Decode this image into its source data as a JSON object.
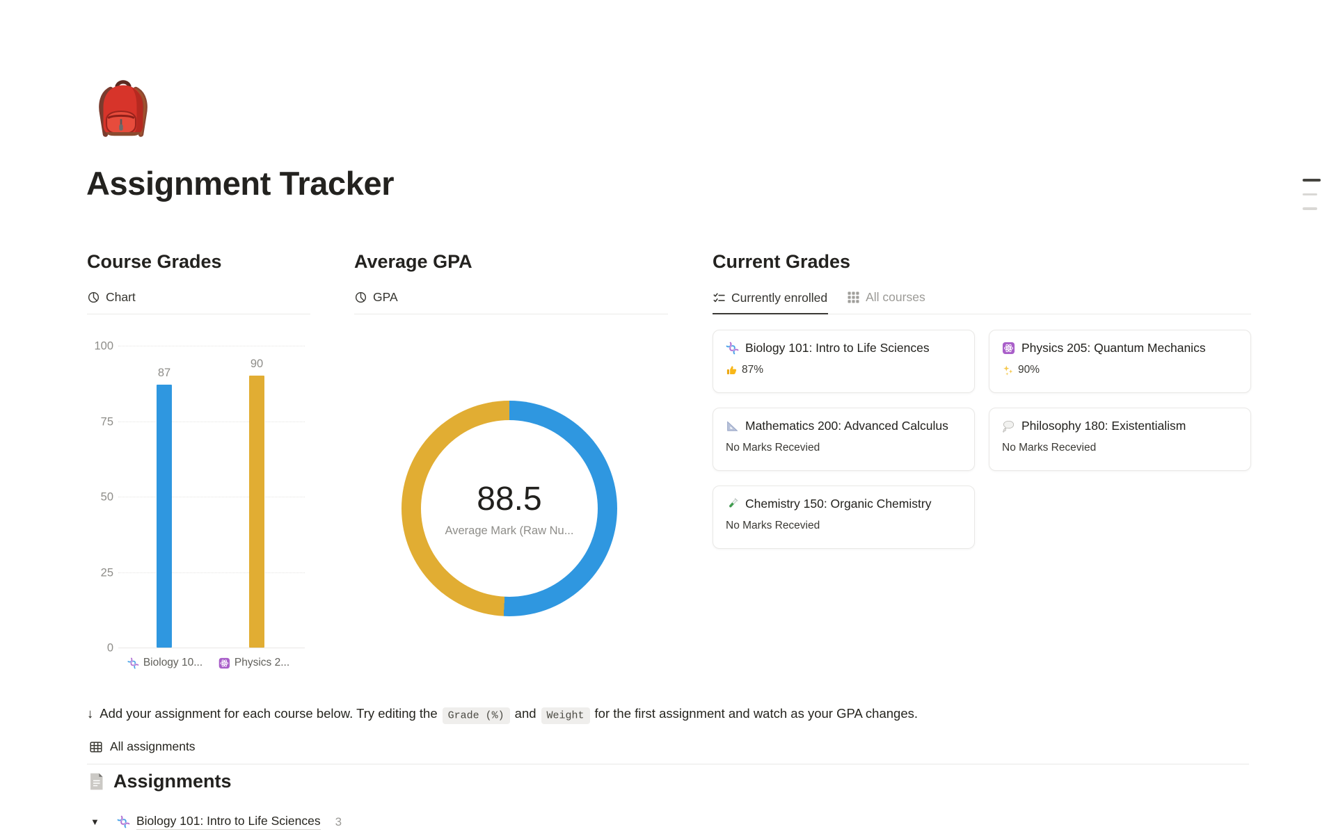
{
  "page": {
    "title": "Assignment Tracker",
    "icon": "backpack-emoji"
  },
  "sections": {
    "course_grades": {
      "heading": "Course Grades",
      "view_tab": "Chart"
    },
    "average_gpa": {
      "heading": "Average GPA",
      "view_tab": "GPA"
    },
    "current_grades": {
      "heading": "Current Grades",
      "tabs": [
        {
          "label": "Currently enrolled",
          "icon": "checklist-icon",
          "active": true
        },
        {
          "label": "All courses",
          "icon": "grid-icon",
          "active": false
        }
      ],
      "cards": [
        {
          "icon": "dna-emoji",
          "title": "Biology 101: Intro to Life Sciences",
          "mark_icon": "thumbs-up-emoji",
          "mark": "87%"
        },
        {
          "icon": "atom-emoji",
          "title": "Physics 205: Quantum Mechanics",
          "mark_icon": "sparkles-emoji",
          "mark": "90%"
        },
        {
          "icon": "triangular-ruler-emoji",
          "title": "Mathematics 200: Advanced Calculus",
          "mark": "No Marks Recevied"
        },
        {
          "icon": "thought-balloon-emoji",
          "title": "Philosophy 180: Existentialism",
          "mark": "No Marks Recevied"
        },
        {
          "icon": "test-tube-emoji",
          "title": "Chemistry 150: Organic Chemistry",
          "mark": "No Marks Recevied"
        }
      ]
    }
  },
  "chart_data": [
    {
      "type": "bar",
      "title": "Course Grades — Chart",
      "categories": [
        "Biology 10...",
        "Physics 2..."
      ],
      "category_icons": [
        "dna-emoji",
        "atom-emoji"
      ],
      "values": [
        87,
        90
      ],
      "colors": [
        "#2f97e0",
        "#e1ad33"
      ],
      "ylim": [
        0,
        100
      ],
      "yticks": [
        0,
        25,
        50,
        75,
        100
      ],
      "grid": "dotted-horizontal",
      "legend": "none"
    },
    {
      "type": "pie",
      "donut": true,
      "title": "Average GPA — GPA",
      "center_value": "88.5",
      "center_label": "Average Mark (Raw Nu...",
      "segments": [
        {
          "name": "Physics 205: Quantum Mechanics",
          "value": 90,
          "color": "#2f97e0"
        },
        {
          "name": "Biology 101: Intro to Life Sciences",
          "value": 87,
          "color": "#e1ad33"
        }
      ],
      "legend": "none"
    }
  ],
  "help": {
    "arrow": "↓",
    "before": "Add your assignment for each course below. Try editing the",
    "code_grade": "Grade (%)",
    "between": "and",
    "code_weight": "Weight",
    "after": "for the first assignment and watch as your GPA changes."
  },
  "all_assignments_label": "All assignments",
  "assignments": {
    "heading": "Assignments",
    "toggle_marker": "▼",
    "groups": [
      {
        "icon": "dna-emoji",
        "title": "Biology 101: Intro to Life Sciences",
        "count": "3"
      }
    ]
  }
}
